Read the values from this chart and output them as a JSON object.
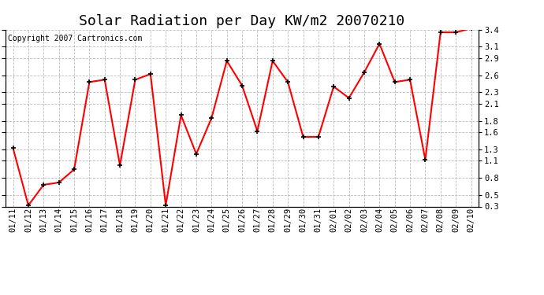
{
  "title": "Solar Radiation per Day KW/m2 20070210",
  "copyright": "Copyright 2007 Cartronics.com",
  "dates": [
    "01/11",
    "01/12",
    "01/13",
    "01/14",
    "01/15",
    "01/16",
    "01/17",
    "01/18",
    "01/19",
    "01/20",
    "01/21",
    "01/22",
    "01/23",
    "01/24",
    "01/25",
    "01/26",
    "01/27",
    "01/28",
    "01/29",
    "01/30",
    "01/31",
    "02/01",
    "02/02",
    "02/03",
    "02/04",
    "02/05",
    "02/06",
    "02/07",
    "02/08",
    "02/09",
    "02/10"
  ],
  "values": [
    1.32,
    0.32,
    0.68,
    0.72,
    0.95,
    2.48,
    2.52,
    1.02,
    2.52,
    2.62,
    0.32,
    1.9,
    1.22,
    1.85,
    2.85,
    2.42,
    1.62,
    2.85,
    2.48,
    1.52,
    1.52,
    2.4,
    2.2,
    2.65,
    3.15,
    2.48,
    2.52,
    1.12,
    3.35,
    3.35,
    3.42
  ],
  "line_color": "#ff0000",
  "marker_color": "#000000",
  "bg_color": "#ffffff",
  "grid_color": "#bbbbbb",
  "ylim_min": 0.3,
  "ylim_max": 3.4,
  "yticks": [
    0.3,
    0.5,
    0.8,
    1.1,
    1.3,
    1.6,
    1.8,
    2.1,
    2.3,
    2.6,
    2.9,
    3.1,
    3.4
  ],
  "title_fontsize": 13,
  "copyright_fontsize": 7,
  "tick_fontsize": 7.5
}
